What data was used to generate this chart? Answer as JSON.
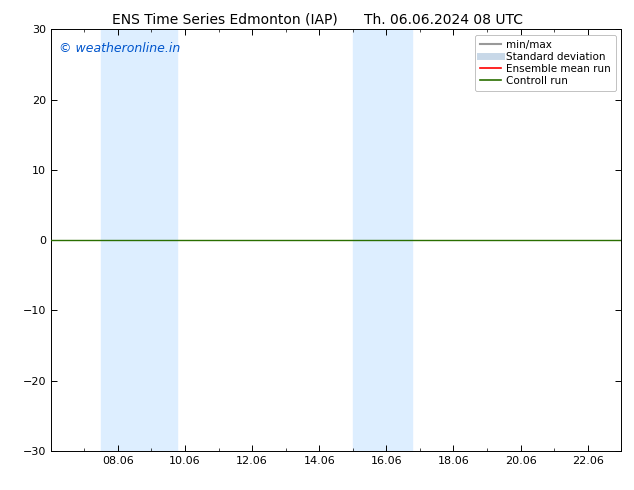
{
  "title_left": "ENS Time Series Edmonton (IAP)",
  "title_right": "Th. 06.06.2024 08 UTC",
  "ylim": [
    -30,
    30
  ],
  "yticks": [
    -30,
    -20,
    -10,
    0,
    10,
    20,
    30
  ],
  "xtick_positions": [
    8,
    10,
    12,
    14,
    16,
    18,
    20,
    22
  ],
  "xtick_labels": [
    "08.06",
    "10.06",
    "12.06",
    "14.06",
    "16.06",
    "18.06",
    "20.06",
    "22.06"
  ],
  "xlim": [
    6.0,
    23.0
  ],
  "shaded_bands": [
    {
      "x_start": 7.5,
      "x_end": 9.75
    },
    {
      "x_start": 15.0,
      "x_end": 16.75
    }
  ],
  "shaded_color": "#ddeeff",
  "zero_line_color": "#2a6e00",
  "zero_line_y": 0,
  "bg_color": "#ffffff",
  "plot_bg_color": "#ffffff",
  "border_color": "#000000",
  "watermark_text": "© weatheronline.in",
  "watermark_color": "#0055cc",
  "legend_items": [
    {
      "label": "min/max",
      "color": "#999999",
      "lw": 1.5
    },
    {
      "label": "Standard deviation",
      "color": "#c8d8e8",
      "lw": 5
    },
    {
      "label": "Ensemble mean run",
      "color": "#ff0000",
      "lw": 1.2
    },
    {
      "label": "Controll run",
      "color": "#2a6e00",
      "lw": 1.2
    }
  ],
  "title_fontsize": 10,
  "tick_fontsize": 8,
  "legend_fontsize": 7.5,
  "watermark_fontsize": 9
}
